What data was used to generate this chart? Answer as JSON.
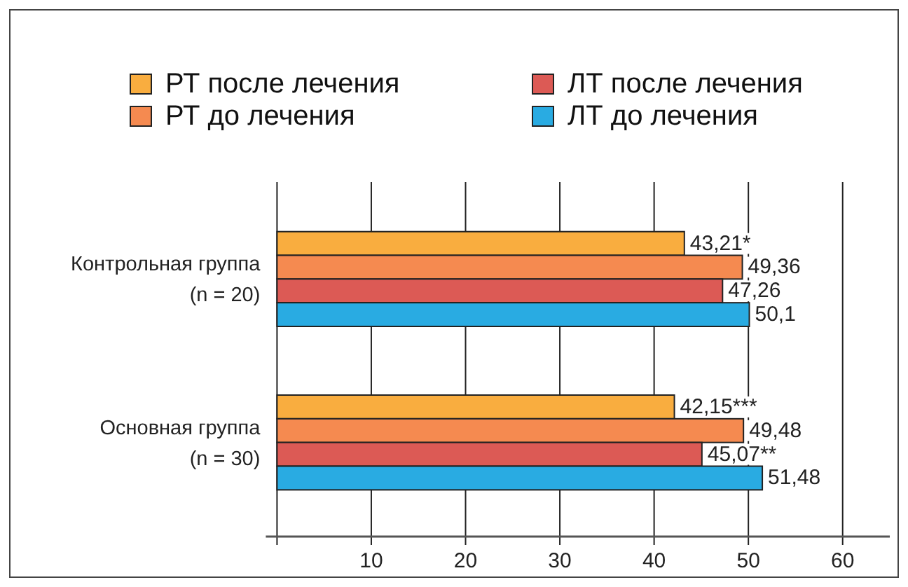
{
  "chart_data": {
    "type": "bar",
    "orientation": "horizontal",
    "categories": [
      "Контрольная группа\n(n = 20)",
      "Основная группа\n(n = 30)"
    ],
    "series": [
      {
        "name": "РТ после лечения",
        "color": "#f9ad3f",
        "values": [
          43.21,
          42.15
        ],
        "value_labels": [
          "43,21*",
          "42,15***"
        ]
      },
      {
        "name": "РТ до лечения",
        "color": "#f58a50",
        "values": [
          49.36,
          49.48
        ],
        "value_labels": [
          "49,36",
          "49,48"
        ]
      },
      {
        "name": "ЛТ после лечения",
        "color": "#dc5a55",
        "values": [
          47.26,
          45.07
        ],
        "value_labels": [
          "47,26",
          "45,07**"
        ]
      },
      {
        "name": "ЛТ до лечения",
        "color": "#29abe2",
        "values": [
          50.1,
          51.48
        ],
        "value_labels": [
          "50,1",
          "51,48"
        ]
      }
    ],
    "xlim": [
      0,
      65
    ],
    "xticks": [
      10,
      20,
      30,
      40,
      50,
      60
    ],
    "grid": "x",
    "legend": "top"
  }
}
